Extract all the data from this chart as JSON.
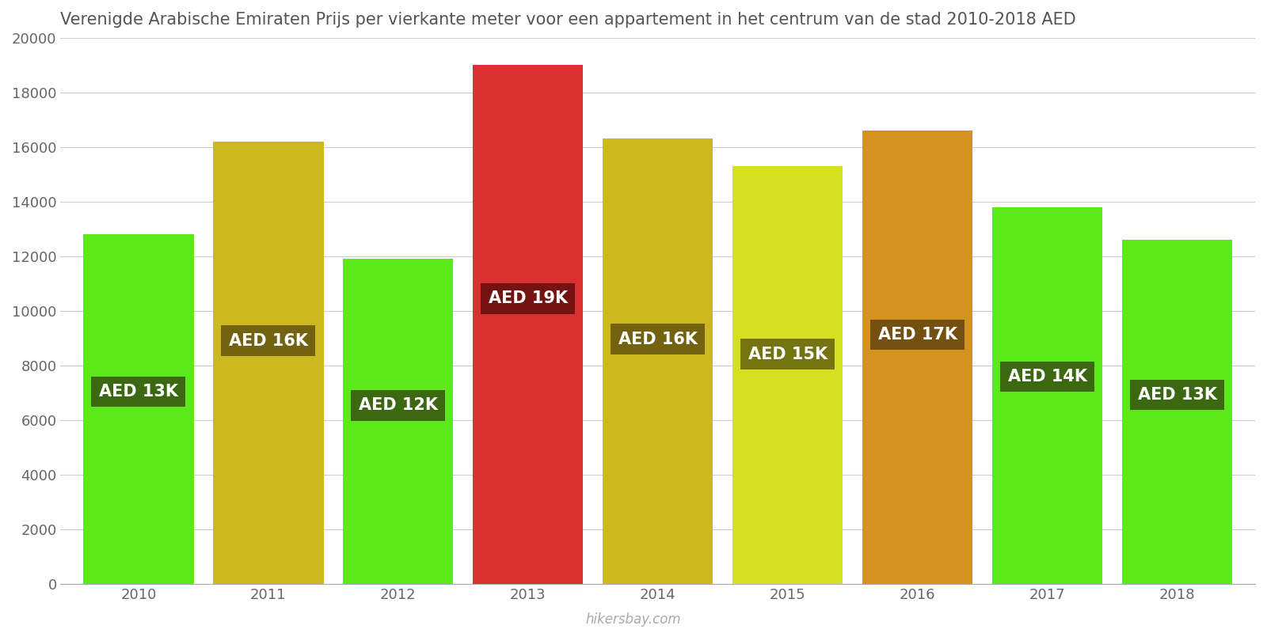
{
  "years": [
    2010,
    2011,
    2012,
    2013,
    2014,
    2015,
    2016,
    2017,
    2018
  ],
  "values": [
    12800,
    16200,
    11900,
    19000,
    16300,
    15300,
    16600,
    13800,
    12600
  ],
  "labels": [
    "AED 13K",
    "AED 16K",
    "AED 12K",
    "AED 19K",
    "AED 16K",
    "AED 15K",
    "AED 17K",
    "AED 14K",
    "AED 13K"
  ],
  "bar_colors": [
    "#5ce81a",
    "#ccb820",
    "#5ce81a",
    "#d93030",
    "#ccb820",
    "#d4e020",
    "#d4921e",
    "#5ce81a",
    "#5ce81a"
  ],
  "label_bg_colors": [
    "#3a5a12",
    "#6a5a10",
    "#3a5a12",
    "#6a1010",
    "#6a5a10",
    "#6a6a10",
    "#6a4a10",
    "#3a5a12",
    "#3a5a12"
  ],
  "title": "Verenigde Arabische Emiraten Prijs per vierkante meter voor een appartement in het centrum van de stad 2010-2018 AED",
  "ylim": [
    0,
    20000
  ],
  "yticks": [
    0,
    2000,
    4000,
    6000,
    8000,
    10000,
    12000,
    14000,
    16000,
    18000,
    20000
  ],
  "background_color": "#ffffff",
  "grid_color": "#cccccc",
  "title_fontsize": 15,
  "label_fontsize": 15,
  "tick_fontsize": 13,
  "bar_width": 0.85,
  "watermark": "hikersbay.com"
}
